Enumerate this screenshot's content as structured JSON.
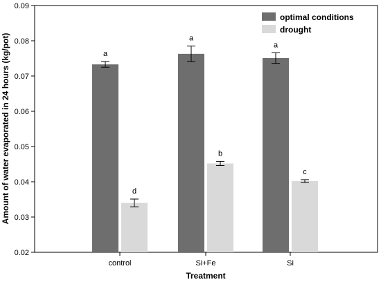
{
  "chart_data": {
    "type": "bar",
    "xlabel": "Treatment",
    "ylabel": "Amount of water evaporated in 24 hours (kg/pot)",
    "ylim": [
      0.02,
      0.09
    ],
    "yticks": [
      "0.02",
      "0.03",
      "0.04",
      "0.05",
      "0.06",
      "0.07",
      "0.08",
      "0.09"
    ],
    "categories": [
      "control",
      "Si+Fe",
      "Si"
    ],
    "legend_position": "top-right",
    "grid": false,
    "series": [
      {
        "name": "optimal conditions",
        "color": "#6e6e6e",
        "values": [
          0.0733,
          0.0763,
          0.0751
        ],
        "errors": [
          0.0008,
          0.0022,
          0.0015
        ],
        "labels": [
          "a",
          "a",
          "a"
        ]
      },
      {
        "name": "drought",
        "color": "#d9d9d9",
        "values": [
          0.034,
          0.0452,
          0.0402
        ],
        "errors": [
          0.0011,
          0.0006,
          0.0004
        ],
        "labels": [
          "d",
          "b",
          "c"
        ]
      }
    ]
  }
}
